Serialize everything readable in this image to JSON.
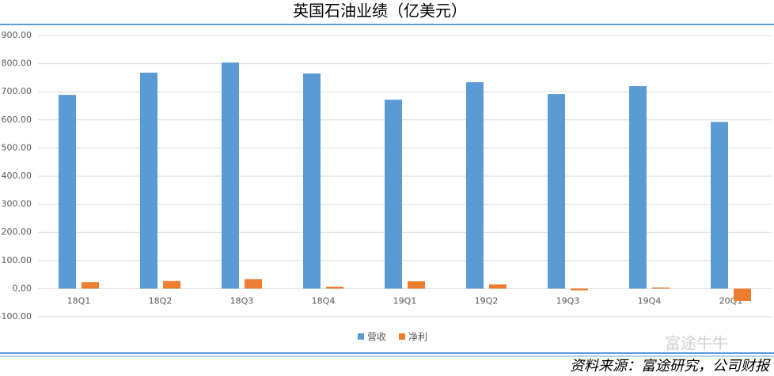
{
  "chart_data": {
    "type": "bar",
    "title": "英国石油业绩（亿美元）",
    "categories": [
      "18Q1",
      "18Q2",
      "18Q3",
      "18Q4",
      "19Q1",
      "19Q2",
      "19Q3",
      "19Q4",
      "20Q1"
    ],
    "series": [
      {
        "name": "营收",
        "color": "#5b9bd5",
        "values": [
          689,
          768,
          804,
          765,
          672,
          734,
          692,
          720,
          593
        ]
      },
      {
        "name": "净利",
        "color": "#ed7d31",
        "values": [
          23,
          27,
          34,
          7,
          26,
          15,
          -6,
          4,
          -44
        ]
      }
    ],
    "ylim": [
      -100,
      900
    ],
    "yticks": [
      {
        "value": -100,
        "label": "-100.00"
      },
      {
        "value": 0,
        "label": "0.00"
      },
      {
        "value": 100,
        "label": "100.00"
      },
      {
        "value": 200,
        "label": "200.00"
      },
      {
        "value": 300,
        "label": "300.00"
      },
      {
        "value": 400,
        "label": "400.00"
      },
      {
        "value": 500,
        "label": "500.00"
      },
      {
        "value": 600,
        "label": "600.00"
      },
      {
        "value": 700,
        "label": "700.00"
      },
      {
        "value": 800,
        "label": "800.00"
      },
      {
        "value": 900,
        "label": "900.00"
      }
    ],
    "grid": true,
    "legend": "bottom",
    "source": "资料来源：富途研究，公司财报",
    "watermark": "富途牛牛"
  }
}
